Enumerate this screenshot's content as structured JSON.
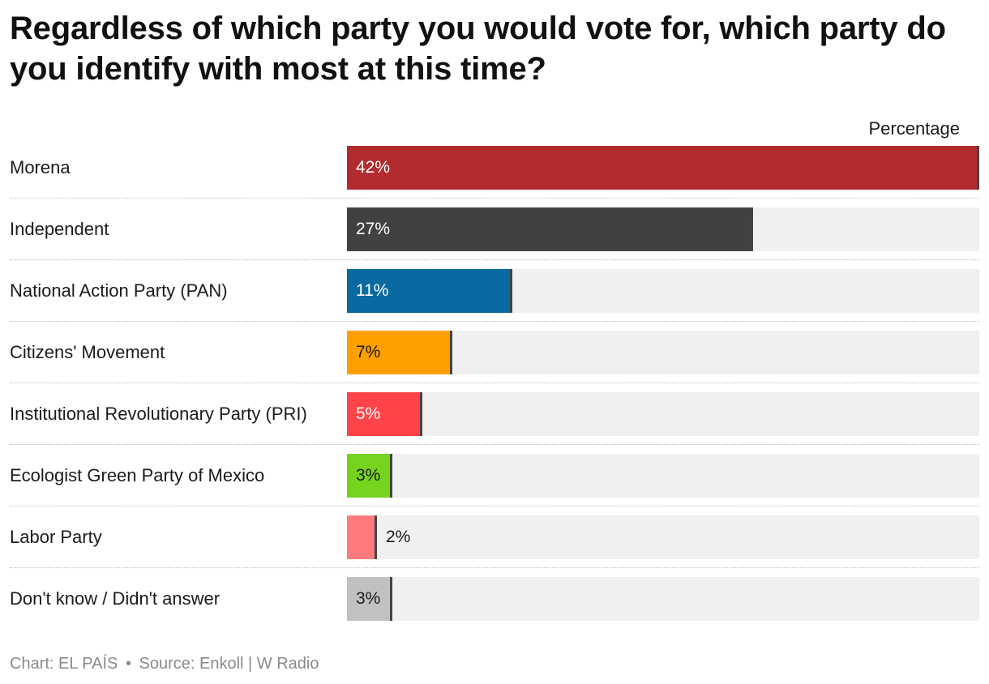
{
  "title": "Regardless of which party you would vote for, which party do you identify with most at this time?",
  "column_header": "Percentage",
  "footer": {
    "chart_credit": "Chart: EL PAÍS",
    "separator": "•",
    "source": "Source: Enkoll | W Radio"
  },
  "chart_data": {
    "type": "bar",
    "orientation": "horizontal",
    "title": "Regardless of which party you would vote for, which party do you identify with most at this time?",
    "value_header": "Percentage",
    "categories": [
      "Morena",
      "Independent",
      "National Action Party (PAN)",
      "Citizens' Movement",
      "Institutional Revolutionary Party (PRI)",
      "Ecologist Green Party of Mexico",
      "Labor Party",
      "Don't know / Didn't answer"
    ],
    "values": [
      42,
      27,
      11,
      7,
      5,
      3,
      2,
      3
    ],
    "value_labels": [
      "42%",
      "27%",
      "11%",
      "7%",
      "5%",
      "3%",
      "2%",
      "3%"
    ],
    "colors": [
      "#b22b2e",
      "#414141",
      "#086aa0",
      "#fd9f00",
      "#ff4349",
      "#76d41f",
      "#ff7a7d",
      "#c1c1c1"
    ],
    "label_colors": [
      "#ffffff",
      "#ffffff",
      "#ffffff",
      "#1b1b1b",
      "#ffffff",
      "#1b1b1b",
      "#1b1b1b",
      "#1b1b1b"
    ],
    "xlim": [
      0,
      42
    ],
    "grid": false,
    "legend": "none"
  }
}
